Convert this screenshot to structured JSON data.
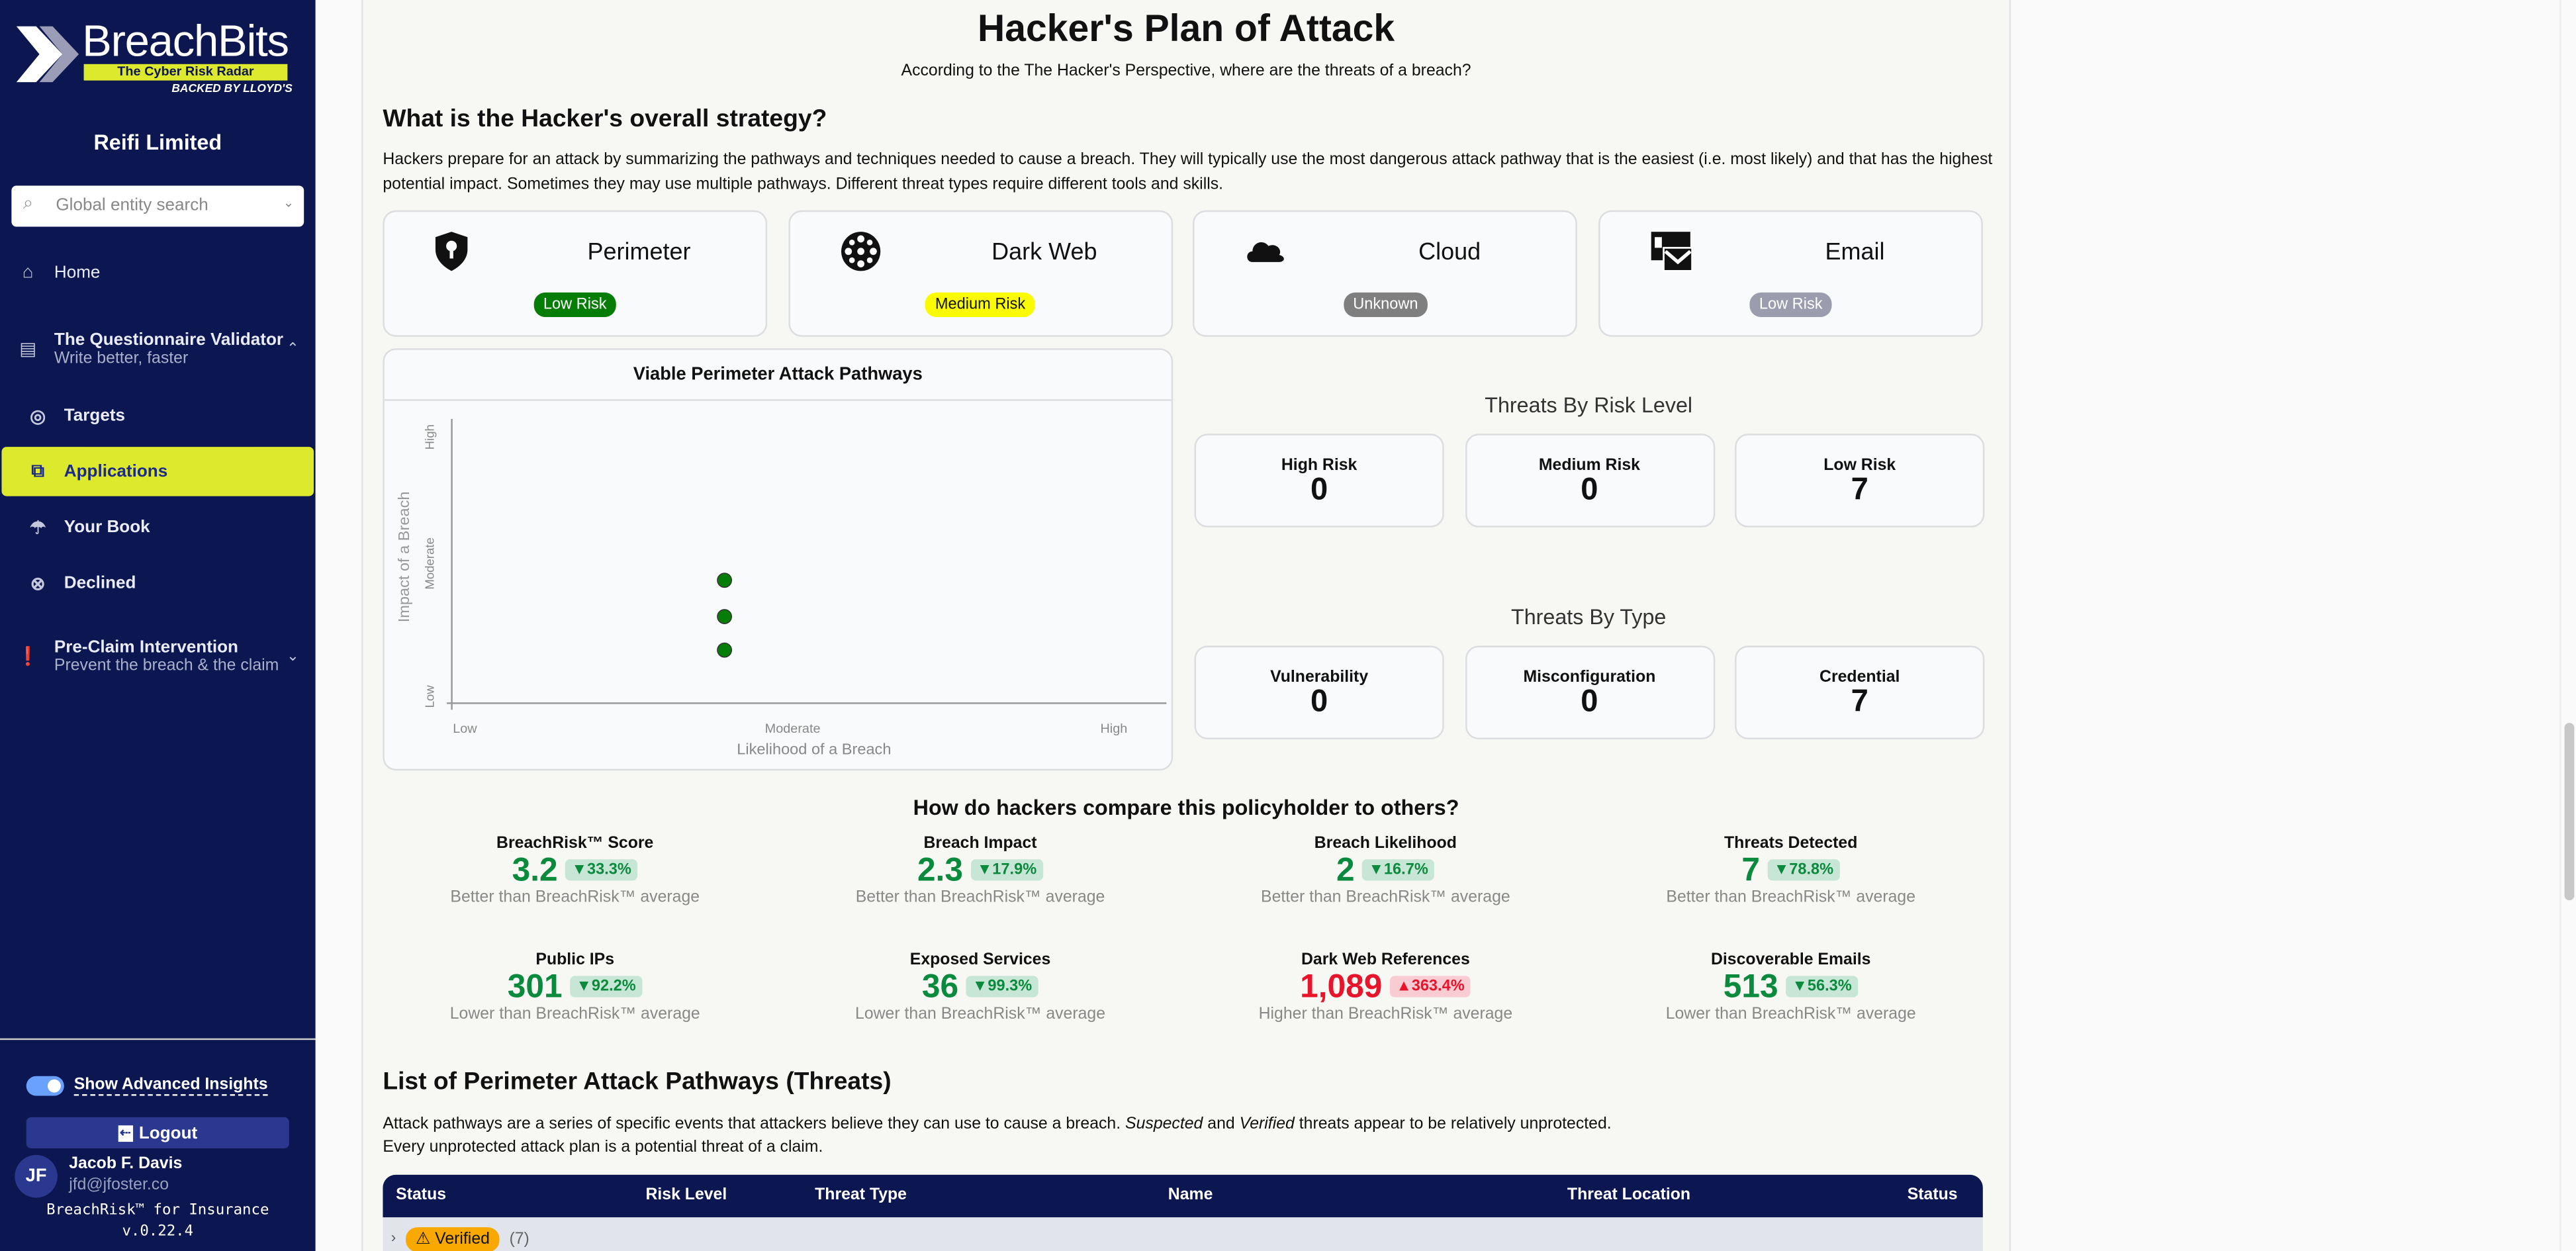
{
  "sidebar": {
    "logo": {
      "brand": "BreachBits",
      "tagline": "The Cyber Risk Radar",
      "backed": "BACKED BY LLOYD'S"
    },
    "entity": "Reifi Limited",
    "search_placeholder": "Global entity search",
    "items": [
      {
        "label": "Home",
        "icon": "home-icon"
      },
      {
        "label": "The Questionnaire Validator",
        "sub": "Write better, faster",
        "icon": "clipboard-icon"
      },
      {
        "label": "Targets",
        "icon": "target-icon"
      },
      {
        "label": "Applications",
        "icon": "application-search-icon"
      },
      {
        "label": "Your Book",
        "icon": "umbrella-icon"
      },
      {
        "label": "Declined",
        "icon": "x-circle-icon"
      },
      {
        "label": "Pre-Claim Intervention",
        "sub": "Prevent the breach & the claim",
        "icon": "alert-message-icon"
      }
    ],
    "advanced_insights": "Show Advanced Insights",
    "advanced_on": true,
    "logout": "Logout",
    "user": {
      "initials": "JF",
      "name": "Jacob F. Davis",
      "email": "jfd@jfoster.co"
    },
    "product": "BreachRisk™ for Insurance",
    "version": "v.0.22.4",
    "active_color": "#dde92c",
    "bg_color": "#0c1650"
  },
  "main": {
    "title": "Hacker's Plan of Attack",
    "subtitle": "According to the The Hacker's Perspective, where are the threats of a breach?",
    "strategy_heading": "What is the Hacker's overall strategy?",
    "strategy_text": "Hackers prepare for an attack by summarizing the pathways and techniques needed to cause a breach. They will typically use the most dangerous attack pathway that is the easiest (i.e. most likely) and that has the highest potential impact. Sometimes they may use multiple pathways. Different threat types require different tools and skills.",
    "categories": [
      {
        "name": "Perimeter",
        "risk": "Low Risk",
        "color": "#067d06",
        "text": "#ffffff",
        "icon": "shield-keyhole-icon"
      },
      {
        "name": "Dark Web",
        "risk": "Medium Risk",
        "color": "#fafa00",
        "text": "#111111",
        "icon": "dark-web-icon"
      },
      {
        "name": "Cloud",
        "risk": "Unknown",
        "color": "#7f7f7f",
        "text": "#ffffff",
        "icon": "cloud-icon"
      },
      {
        "name": "Email",
        "risk": "Low Risk",
        "color": "#9b9cae",
        "text": "#ffffff",
        "icon": "email-icon"
      }
    ],
    "risk_level_heading": "Threats By Risk Level",
    "risk_levels": [
      {
        "label": "High Risk",
        "value": "0"
      },
      {
        "label": "Medium Risk",
        "value": "0"
      },
      {
        "label": "Low Risk",
        "value": "7"
      }
    ],
    "type_heading": "Threats By Type",
    "types": [
      {
        "label": "Vulnerability",
        "value": "0"
      },
      {
        "label": "Misconfiguration",
        "value": "0"
      },
      {
        "label": "Credential",
        "value": "7"
      }
    ],
    "compare_heading": "How do hackers compare this policyholder to others?",
    "stats": [
      {
        "label": "BreachRisk™ Score",
        "value": "3.2",
        "delta": "33.3%",
        "dir": "down",
        "good": true,
        "sub": "Better than BreachRisk™ average"
      },
      {
        "label": "Breach Impact",
        "value": "2.3",
        "delta": "17.9%",
        "dir": "down",
        "good": true,
        "sub": "Better than BreachRisk™ average"
      },
      {
        "label": "Breach Likelihood",
        "value": "2",
        "delta": "16.7%",
        "dir": "down",
        "good": true,
        "sub": "Better than BreachRisk™ average"
      },
      {
        "label": "Threats Detected",
        "value": "7",
        "delta": "78.8%",
        "dir": "down",
        "good": true,
        "sub": "Better than BreachRisk™ average"
      },
      {
        "label": "Public IPs",
        "value": "301",
        "delta": "92.2%",
        "dir": "down",
        "good": true,
        "sub": "Lower than BreachRisk™ average"
      },
      {
        "label": "Exposed Services",
        "value": "36",
        "delta": "99.3%",
        "dir": "down",
        "good": true,
        "sub": "Lower than BreachRisk™ average"
      },
      {
        "label": "Dark Web References",
        "value": "1,089",
        "delta": "363.4%",
        "dir": "up",
        "good": false,
        "sub": "Higher than BreachRisk™ average"
      },
      {
        "label": "Discoverable Emails",
        "value": "513",
        "delta": "56.3%",
        "dir": "down",
        "good": true,
        "sub": "Lower than BreachRisk™ average"
      }
    ],
    "list_heading": "List of Perimeter Attack Pathways (Threats)",
    "list_text_1a": "Attack pathways are a series of specific events that attackers believe they can use to cause a breach. ",
    "list_text_1b": "Suspected",
    "list_text_1c": " and ",
    "list_text_1d": "Verified",
    "list_text_1e": " threats appear to be relatively unprotected.",
    "list_text_2": "Every unprotected attack plan is a potential threat of a claim.",
    "table": {
      "columns": [
        "Status",
        "Risk Level",
        "Threat Type",
        "Name",
        "Threat Location",
        "Status"
      ],
      "group": {
        "label": "Verified",
        "count": "(7)",
        "color": "#f8a800"
      }
    }
  },
  "chart_data": {
    "type": "scatter",
    "title": "Viable Perimeter Attack Pathways",
    "xlabel": "Likelihood of a Breach",
    "ylabel": "Impact of a Breach",
    "xlim": [
      0,
      2
    ],
    "ylim": [
      0,
      2
    ],
    "xticks": [
      {
        "v": 0,
        "label": "Low"
      },
      {
        "v": 1,
        "label": "Moderate"
      },
      {
        "v": 2,
        "label": "High"
      }
    ],
    "yticks": [
      {
        "v": 0,
        "label": "Low"
      },
      {
        "v": 1,
        "label": "Moderate"
      },
      {
        "v": 2,
        "label": "High"
      }
    ],
    "grid": false,
    "color": "#067d06",
    "points": [
      {
        "x": 0.8,
        "y": 0.88
      },
      {
        "x": 0.8,
        "y": 0.62
      },
      {
        "x": 0.8,
        "y": 0.38
      }
    ]
  }
}
